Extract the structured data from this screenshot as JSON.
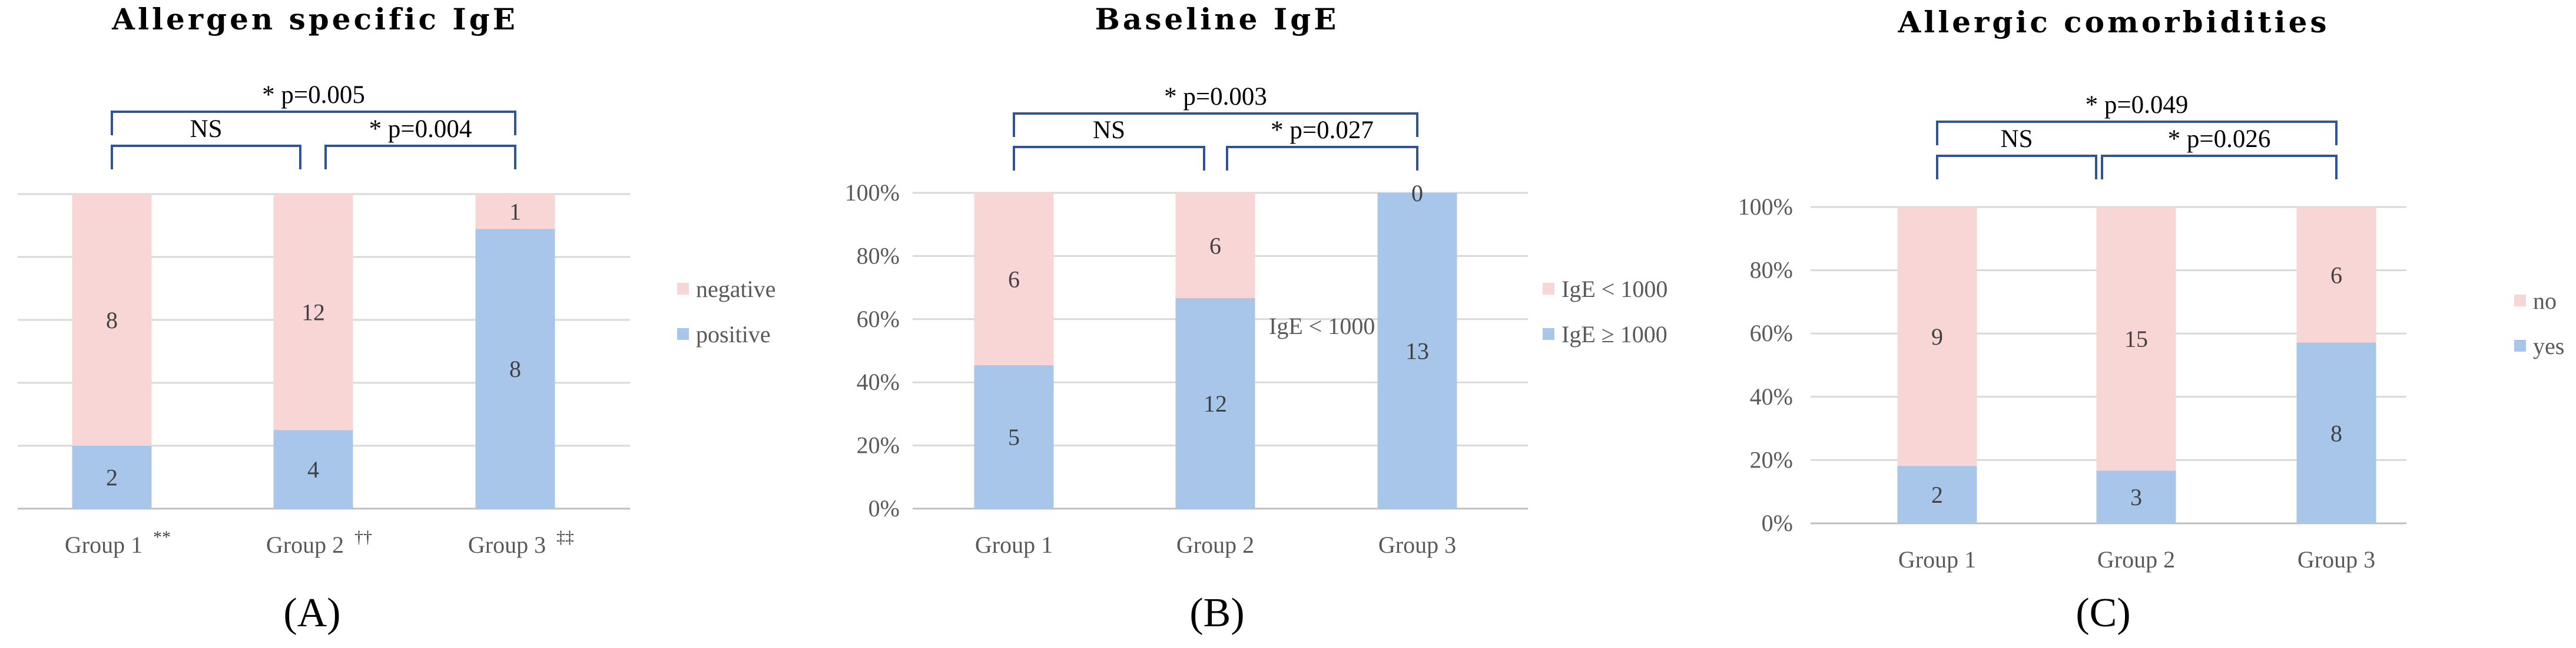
{
  "colors": {
    "positive": "#a8c6ea",
    "negative": "#f9d6d6",
    "bracket": "#2f5597"
  },
  "chart_data": [
    {
      "type": "bar",
      "stacked": true,
      "title": "Allergen specific IgE",
      "panel_label": "(A)",
      "categories": [
        "Group 1",
        "Group 2",
        "Group 3"
      ],
      "category_marks": [
        "**",
        "††",
        "‡‡"
      ],
      "series": [
        {
          "name": "positive",
          "values": [
            2,
            4,
            8
          ]
        },
        {
          "name": "negative",
          "values": [
            8,
            12,
            1
          ]
        }
      ],
      "y_ticks": [],
      "legend_position": "right",
      "comparisons": [
        {
          "from": "Group 1",
          "to": "Group 3",
          "label": "* p=0.005"
        },
        {
          "from": "Group 1",
          "to": "Group 2",
          "label": "NS"
        },
        {
          "from": "Group 2",
          "to": "Group 3",
          "label": "* p=0.004"
        }
      ]
    },
    {
      "type": "bar",
      "stacked": true,
      "title": "Baseline IgE",
      "panel_label": "(B)",
      "categories": [
        "Group 1",
        "Group 2",
        "Group 3"
      ],
      "category_marks": [
        "",
        "",
        ""
      ],
      "series": [
        {
          "name": "IgE ≥ 1000",
          "values": [
            5,
            12,
            13
          ]
        },
        {
          "name": "IgE < 1000",
          "values": [
            6,
            6,
            0
          ]
        }
      ],
      "y_ticks": [
        "0%",
        "20%",
        "40%",
        "60%",
        "80%",
        "100%"
      ],
      "legend_position": "right",
      "stray_text": "IgE < 1000",
      "comparisons": [
        {
          "from": "Group 1",
          "to": "Group 3",
          "label": "* p=0.003"
        },
        {
          "from": "Group 1",
          "to": "Group 2",
          "label": "NS"
        },
        {
          "from": "Group 2",
          "to": "Group 3",
          "label": "* p=0.027"
        }
      ]
    },
    {
      "type": "bar",
      "stacked": true,
      "title": "Allergic comorbidities",
      "panel_label": "(C)",
      "categories": [
        "Group 1",
        "Group 2",
        "Group 3"
      ],
      "category_marks": [
        "",
        "",
        ""
      ],
      "series": [
        {
          "name": "yes",
          "values": [
            2,
            3,
            8
          ]
        },
        {
          "name": "no",
          "values": [
            9,
            15,
            6
          ]
        }
      ],
      "y_ticks": [
        "0%",
        "20%",
        "40%",
        "60%",
        "80%",
        "100%"
      ],
      "legend_position": "right",
      "comparisons": [
        {
          "from": "Group 1",
          "to": "Group 3",
          "label": "* p=0.049"
        },
        {
          "from": "Group 1",
          "to": "Group 2",
          "label": "NS"
        },
        {
          "from": "Group 2",
          "to": "Group 3",
          "label": "* p=0.026"
        }
      ]
    }
  ]
}
